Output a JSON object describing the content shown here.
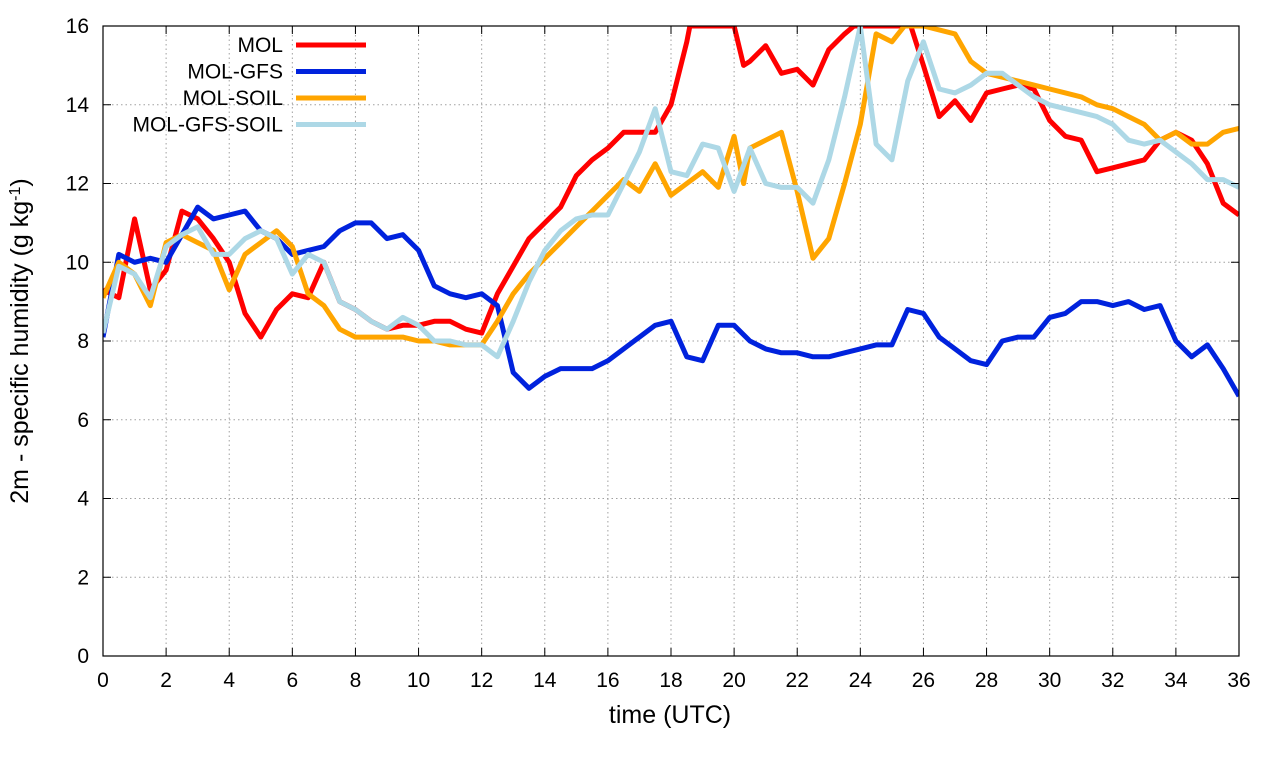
{
  "chart_data": {
    "type": "line",
    "xlabel": "time (UTC)",
    "ylabel": "2m - specific humidity (g kg",
    "ylabel_sup": "-1",
    "ylabel_close": ")",
    "xlim": [
      0,
      36
    ],
    "ylim": [
      0,
      16
    ],
    "xticks": [
      0,
      2,
      4,
      6,
      8,
      10,
      12,
      14,
      16,
      18,
      20,
      22,
      24,
      26,
      28,
      30,
      32,
      34,
      36
    ],
    "yticks": [
      0,
      2,
      4,
      6,
      8,
      10,
      12,
      14,
      16
    ],
    "grid": true,
    "legend_position": "top-left",
    "series": [
      {
        "name": "MOL",
        "color": "#ff0000",
        "x": [
          0,
          0.5,
          1,
          1.5,
          2,
          2.5,
          3,
          3.5,
          4,
          4.5,
          5,
          5.5,
          6,
          6.5,
          7,
          7.5,
          8,
          8.5,
          9,
          9.5,
          10,
          10.5,
          11,
          11.5,
          12,
          12.5,
          13,
          13.5,
          14,
          14.5,
          15,
          15.5,
          16,
          16.5,
          17,
          17.5,
          18,
          18.5,
          18.6,
          19.8,
          20,
          20.3,
          20.5,
          21,
          21.5,
          22,
          22.5,
          23,
          23.5,
          23.8,
          25.3,
          25.6,
          26,
          26.5,
          27,
          27.5,
          28,
          28.5,
          29,
          29.5,
          30,
          30.5,
          31,
          31.5,
          32,
          32.5,
          33,
          33.5,
          34,
          34.5,
          35,
          35.5,
          36
        ],
        "values": [
          9.3,
          9.1,
          11.1,
          9.3,
          9.8,
          11.3,
          11.1,
          10.6,
          10.0,
          8.7,
          8.1,
          8.8,
          9.2,
          9.1,
          10.0,
          9.0,
          8.8,
          8.5,
          8.3,
          8.4,
          8.4,
          8.5,
          8.5,
          8.3,
          8.2,
          9.2,
          9.9,
          10.6,
          11.0,
          11.4,
          12.2,
          12.6,
          12.9,
          13.3,
          13.3,
          13.3,
          14.0,
          15.6,
          16.0,
          16.0,
          16.0,
          15.0,
          15.1,
          15.5,
          14.8,
          14.9,
          14.5,
          15.4,
          15.8,
          16.0,
          16.0,
          16.0,
          15.0,
          13.7,
          14.1,
          13.6,
          14.3,
          14.4,
          14.5,
          14.4,
          13.6,
          13.2,
          13.1,
          12.3,
          12.4,
          12.5,
          12.6,
          13.1,
          13.3,
          13.1,
          12.5,
          11.5,
          11.2
        ]
      },
      {
        "name": "MOL-GFS",
        "color": "#0022dd",
        "x": [
          0,
          0.5,
          1,
          1.5,
          2,
          2.5,
          3,
          3.5,
          4,
          4.5,
          5,
          5.5,
          6,
          6.5,
          7,
          7.5,
          8,
          8.5,
          9,
          9.5,
          10,
          10.5,
          11,
          11.5,
          12,
          12.5,
          13,
          13.5,
          14,
          14.5,
          15,
          15.5,
          16,
          16.5,
          17,
          17.5,
          18,
          18.5,
          19,
          19.5,
          20,
          20.5,
          21,
          21.5,
          22,
          22.5,
          23,
          23.5,
          24,
          24.5,
          25,
          25.5,
          26,
          26.5,
          27,
          27.5,
          28,
          28.5,
          29,
          29.5,
          30,
          30.5,
          31,
          31.5,
          32,
          32.5,
          33,
          33.5,
          34,
          34.5,
          35,
          35.5,
          36
        ],
        "values": [
          8.1,
          10.2,
          10.0,
          10.1,
          10.0,
          10.7,
          11.4,
          11.1,
          11.2,
          11.3,
          10.8,
          10.6,
          10.2,
          10.3,
          10.4,
          10.8,
          11.0,
          11.0,
          10.6,
          10.7,
          10.3,
          9.4,
          9.2,
          9.1,
          9.2,
          8.9,
          7.2,
          6.8,
          7.1,
          7.3,
          7.3,
          7.3,
          7.5,
          7.8,
          8.1,
          8.4,
          8.5,
          7.6,
          7.5,
          8.4,
          8.4,
          8.0,
          7.8,
          7.7,
          7.7,
          7.6,
          7.6,
          7.7,
          7.8,
          7.9,
          7.9,
          8.8,
          8.7,
          8.1,
          7.8,
          7.5,
          7.4,
          8.0,
          8.1,
          8.1,
          8.6,
          8.7,
          9.0,
          9.0,
          8.9,
          9.0,
          8.8,
          8.9,
          8.0,
          7.6,
          7.9,
          7.3,
          6.6
        ]
      },
      {
        "name": "MOL-SOIL",
        "color": "#ffa500",
        "x": [
          0,
          0.5,
          1,
          1.5,
          2,
          2.5,
          3,
          3.5,
          4,
          4.5,
          5,
          5.5,
          6,
          6.5,
          7,
          7.5,
          8,
          8.5,
          9,
          9.5,
          10,
          10.5,
          11,
          11.5,
          12,
          12.5,
          13,
          13.5,
          14,
          14.5,
          15,
          15.5,
          16,
          16.5,
          17,
          17.5,
          18,
          18.5,
          19,
          19.5,
          20,
          20.3,
          20.5,
          21,
          21.5,
          22,
          22.5,
          23,
          23.5,
          24,
          24.5,
          25,
          25.4,
          26,
          26.5,
          27,
          27.5,
          28,
          28.5,
          29,
          29.5,
          30,
          30.5,
          31,
          31.5,
          32,
          32.5,
          33,
          33.5,
          34,
          34.5,
          35,
          35.5,
          36
        ],
        "values": [
          9.1,
          10.0,
          9.7,
          8.9,
          10.5,
          10.7,
          10.5,
          10.3,
          9.3,
          10.2,
          10.5,
          10.8,
          10.4,
          9.2,
          8.9,
          8.3,
          8.1,
          8.1,
          8.1,
          8.1,
          8.0,
          8.0,
          7.9,
          7.9,
          7.9,
          8.5,
          9.2,
          9.7,
          10.1,
          10.5,
          10.9,
          11.3,
          11.7,
          12.1,
          11.8,
          12.5,
          11.7,
          12.0,
          12.3,
          11.9,
          13.2,
          12.0,
          12.9,
          13.1,
          13.3,
          11.8,
          10.1,
          10.6,
          12.0,
          13.5,
          15.8,
          15.6,
          16.0,
          16.0,
          15.9,
          15.8,
          15.1,
          14.8,
          14.7,
          14.6,
          14.5,
          14.4,
          14.3,
          14.2,
          14.0,
          13.9,
          13.7,
          13.5,
          13.1,
          13.3,
          13.0,
          13.0,
          13.3,
          13.4
        ]
      },
      {
        "name": "MOL-GFS-SOIL",
        "color": "#add8e6",
        "x": [
          0,
          0.5,
          1,
          1.5,
          2,
          2.5,
          3,
          3.5,
          4,
          4.5,
          5,
          5.5,
          6,
          6.5,
          7,
          7.5,
          8,
          8.5,
          9,
          9.5,
          10,
          10.5,
          11,
          11.5,
          12,
          12.5,
          13,
          13.5,
          14,
          14.5,
          15,
          15.5,
          16,
          16.5,
          17,
          17.5,
          18,
          18.5,
          19,
          19.5,
          20,
          20.5,
          21,
          21.5,
          22,
          22.5,
          23,
          23.5,
          24,
          24.5,
          25,
          25.5,
          26,
          26.5,
          27,
          27.5,
          28,
          28.5,
          29,
          29.5,
          30,
          30.5,
          31,
          31.5,
          32,
          32.5,
          33,
          33.5,
          34,
          34.5,
          35,
          35.5,
          36
        ],
        "values": [
          8.2,
          9.9,
          9.7,
          9.1,
          10.4,
          10.7,
          10.9,
          10.2,
          10.2,
          10.6,
          10.8,
          10.6,
          9.7,
          10.2,
          10.0,
          9.0,
          8.8,
          8.5,
          8.3,
          8.6,
          8.4,
          8.0,
          8.0,
          7.9,
          7.9,
          7.6,
          8.5,
          9.5,
          10.3,
          10.8,
          11.1,
          11.2,
          11.2,
          12.0,
          12.8,
          13.9,
          12.3,
          12.2,
          13.0,
          12.9,
          11.8,
          12.9,
          12.0,
          11.9,
          11.9,
          11.5,
          12.6,
          14.2,
          16.0,
          13.0,
          12.6,
          14.6,
          15.6,
          14.4,
          14.3,
          14.5,
          14.8,
          14.8,
          14.5,
          14.2,
          14.0,
          13.9,
          13.8,
          13.7,
          13.5,
          13.1,
          13.0,
          13.1,
          12.8,
          12.5,
          12.1,
          12.1,
          11.9
        ]
      }
    ]
  }
}
